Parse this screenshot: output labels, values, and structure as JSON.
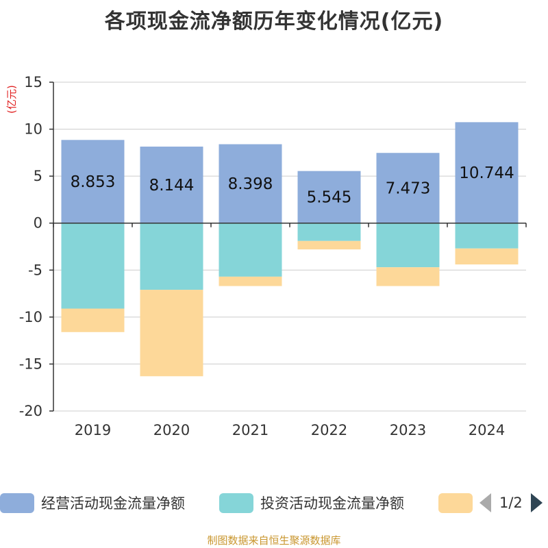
{
  "chart_data": {
    "type": "bar",
    "stacked": true,
    "title": "各项现金流净额历年变化情况(亿元)",
    "ylabel": "(亿元)",
    "xlabel": "",
    "ylim": [
      -20,
      15
    ],
    "yticks": [
      15,
      10,
      5,
      0,
      -5,
      -10,
      -15,
      -20
    ],
    "grid": true,
    "categories": [
      "2019",
      "2020",
      "2021",
      "2022",
      "2023",
      "2024"
    ],
    "series": [
      {
        "name": "经营活动现金流量净额",
        "color": "#8eaddb",
        "values": [
          8.853,
          8.144,
          8.398,
          5.545,
          7.473,
          10.744
        ],
        "labels": [
          "8.853",
          "8.144",
          "8.398",
          "5.545",
          "7.473",
          "10.744"
        ]
      },
      {
        "name": "投资活动现金流量净额",
        "color": "#85d5d8",
        "values": [
          -9.1,
          -7.1,
          -5.7,
          -1.9,
          -4.7,
          -2.7
        ]
      },
      {
        "name": "",
        "color": "#fdd899",
        "values": [
          -2.5,
          -9.2,
          -1.0,
          -0.9,
          -2.0,
          -1.7
        ]
      }
    ],
    "legend_position": "bottom"
  },
  "legend": {
    "items": [
      {
        "label": "经营活动现金流量净额",
        "color": "#8eaddb"
      },
      {
        "label": "投资活动现金流量净额",
        "color": "#85d5d8"
      },
      {
        "label": "",
        "color": "#fdd899"
      }
    ],
    "pager": "1/2"
  },
  "source": "制图数据来自恒生聚源数据库",
  "colors": {
    "axis": "#333333",
    "grid": "#cccccc",
    "ylabel": "#e02020",
    "source": "#c9962e"
  }
}
